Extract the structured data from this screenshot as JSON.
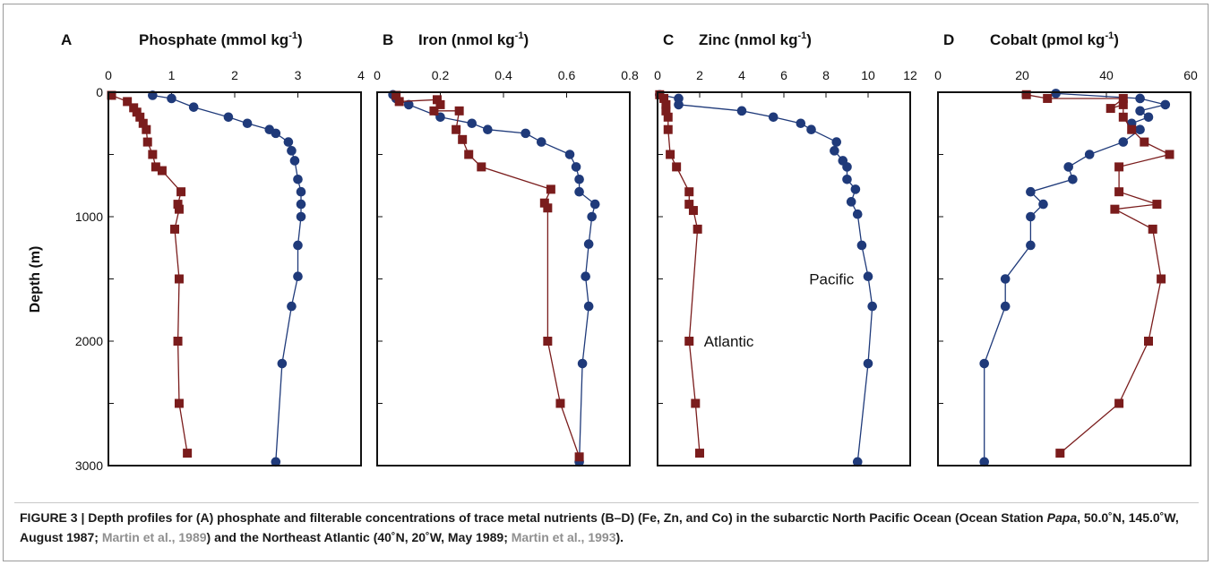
{
  "figure": {
    "caption_parts": [
      {
        "text": "FIGURE 3 | Depth profiles for (A) phosphate and filterable concentrations of trace metal nutrients (B–D) (Fe, Zn, and Co) in the subarctic North Pacific Ocean (Ocean Station ",
        "style": "plain"
      },
      {
        "text": "Papa",
        "style": "italic"
      },
      {
        "text": ", 50.0˚N, 145.0˚W, August 1987; ",
        "style": "plain"
      },
      {
        "text": "Martin et al., 1989",
        "style": "ref"
      },
      {
        "text": ") and the Northeast Atlantic (40˚N, 20˚W, May 1989; ",
        "style": "plain"
      },
      {
        "text": "Martin et al., 1993",
        "style": "ref"
      },
      {
        "text": ").",
        "style": "plain"
      }
    ],
    "ylabel": "Depth (m)",
    "colors": {
      "pacific": "#1f3a7a",
      "atlantic": "#7a1c1c"
    }
  },
  "chart_data": [
    {
      "type": "line",
      "letter": "A",
      "title": "Phosphate (mmol kg",
      "title_sup": "-1",
      "title_end": ")",
      "xlim": [
        0,
        4
      ],
      "xticks": [
        0,
        1,
        2,
        3,
        4
      ],
      "ylim": [
        3000,
        0
      ],
      "yticks": [
        0,
        1000,
        2000,
        3000
      ],
      "annotations": [],
      "series": [
        {
          "key": "pacific",
          "marker": "circle",
          "x": [
            0.7,
            1.0,
            1.35,
            1.9,
            2.2,
            2.55,
            2.65,
            2.85,
            2.9,
            2.95,
            3.0,
            3.05,
            3.05,
            3.05,
            3.0,
            3.0,
            2.9,
            2.75,
            2.65
          ],
          "y": [
            25,
            50,
            120,
            200,
            250,
            300,
            330,
            400,
            470,
            550,
            700,
            800,
            900,
            1000,
            1230,
            1480,
            1720,
            2180,
            2970
          ]
        },
        {
          "key": "atlantic",
          "marker": "square",
          "x": [
            0.05,
            0.3,
            0.4,
            0.45,
            0.5,
            0.55,
            0.6,
            0.62,
            0.7,
            0.75,
            0.85,
            1.15,
            1.1,
            1.12,
            1.05,
            1.12,
            1.1,
            1.12,
            1.25
          ],
          "y": [
            25,
            75,
            125,
            160,
            200,
            250,
            300,
            400,
            500,
            600,
            630,
            800,
            900,
            940,
            1100,
            1500,
            2000,
            2500,
            2900
          ]
        }
      ]
    },
    {
      "type": "line",
      "letter": "B",
      "title": "Iron (nmol kg",
      "title_sup": "-1",
      "title_end": ")",
      "xlim": [
        0,
        0.8
      ],
      "xticks": [
        0,
        0.2,
        0.4,
        0.6,
        0.8
      ],
      "ylim": [
        3000,
        0
      ],
      "yticks": [
        0,
        1000,
        2000,
        3000
      ],
      "annotations": [],
      "series": [
        {
          "key": "pacific",
          "marker": "circle",
          "x": [
            0.05,
            0.06,
            0.1,
            0.2,
            0.3,
            0.35,
            0.47,
            0.52,
            0.61,
            0.63,
            0.64,
            0.64,
            0.69,
            0.68,
            0.67,
            0.66,
            0.67,
            0.65,
            0.64
          ],
          "y": [
            20,
            50,
            100,
            200,
            250,
            300,
            330,
            400,
            500,
            600,
            700,
            800,
            900,
            1000,
            1220,
            1480,
            1720,
            2180,
            2970
          ]
        },
        {
          "key": "atlantic",
          "marker": "square",
          "x": [
            0.06,
            0.07,
            0.19,
            0.2,
            0.18,
            0.26,
            0.25,
            0.27,
            0.29,
            0.33,
            0.55,
            0.53,
            0.54,
            0.54,
            0.58,
            0.64
          ],
          "y": [
            25,
            75,
            60,
            100,
            150,
            150,
            300,
            380,
            500,
            600,
            780,
            890,
            930,
            2000,
            2500,
            2930
          ]
        }
      ]
    },
    {
      "type": "line",
      "letter": "C",
      "title": "Zinc (nmol kg",
      "title_sup": "-1",
      "title_end": ")",
      "xlim": [
        0,
        12
      ],
      "xticks": [
        0,
        2,
        4,
        6,
        8,
        10,
        12
      ],
      "ylim": [
        3000,
        0
      ],
      "yticks": [
        0,
        1000,
        2000,
        3000
      ],
      "annotations": [
        {
          "text": "Pacific",
          "x": 7.2,
          "y": 1500
        },
        {
          "text": "Atlantic",
          "x": 2.2,
          "y": 2000
        }
      ],
      "series": [
        {
          "key": "pacific",
          "marker": "circle",
          "x": [
            0.1,
            1.0,
            1.0,
            4.0,
            5.5,
            6.8,
            7.3,
            8.5,
            8.4,
            8.8,
            9.0,
            9.0,
            9.4,
            9.2,
            9.5,
            9.7,
            10.0,
            10.2,
            10.0,
            9.5
          ],
          "y": [
            20,
            50,
            100,
            150,
            200,
            250,
            300,
            400,
            470,
            550,
            600,
            700,
            780,
            880,
            980,
            1230,
            1480,
            1720,
            2180,
            2970
          ]
        },
        {
          "key": "atlantic",
          "marker": "square",
          "x": [
            0.1,
            0.3,
            0.4,
            0.4,
            0.5,
            0.5,
            0.6,
            0.9,
            1.5,
            1.5,
            1.7,
            1.9,
            1.5,
            1.8,
            2.0
          ],
          "y": [
            20,
            50,
            100,
            150,
            200,
            300,
            500,
            600,
            800,
            900,
            950,
            1100,
            2000,
            2500,
            2900
          ]
        }
      ]
    },
    {
      "type": "line",
      "letter": "D",
      "title": "Cobalt (pmol kg",
      "title_sup": "-1",
      "title_end": ")",
      "xlim": [
        0,
        60
      ],
      "xticks": [
        0,
        20,
        40,
        60
      ],
      "ylim": [
        3000,
        0
      ],
      "yticks": [
        0,
        1000,
        2000,
        3000
      ],
      "annotations": [],
      "series": [
        {
          "key": "pacific",
          "marker": "circle",
          "x": [
            28,
            48,
            54,
            48,
            50,
            46,
            48,
            44,
            36,
            31,
            32,
            22,
            25,
            22,
            22,
            16,
            16,
            11,
            11
          ],
          "y": [
            10,
            50,
            100,
            150,
            200,
            250,
            300,
            400,
            500,
            600,
            700,
            800,
            900,
            1000,
            1230,
            1500,
            1720,
            2180,
            2970
          ]
        },
        {
          "key": "atlantic",
          "marker": "square",
          "x": [
            21,
            26,
            44,
            41,
            44,
            44,
            46,
            49,
            55,
            43,
            43,
            52,
            42,
            51,
            53,
            50,
            43,
            29
          ],
          "y": [
            20,
            50,
            50,
            130,
            100,
            200,
            300,
            400,
            500,
            600,
            800,
            900,
            940,
            1100,
            1500,
            2000,
            2500,
            2900
          ]
        }
      ]
    }
  ]
}
